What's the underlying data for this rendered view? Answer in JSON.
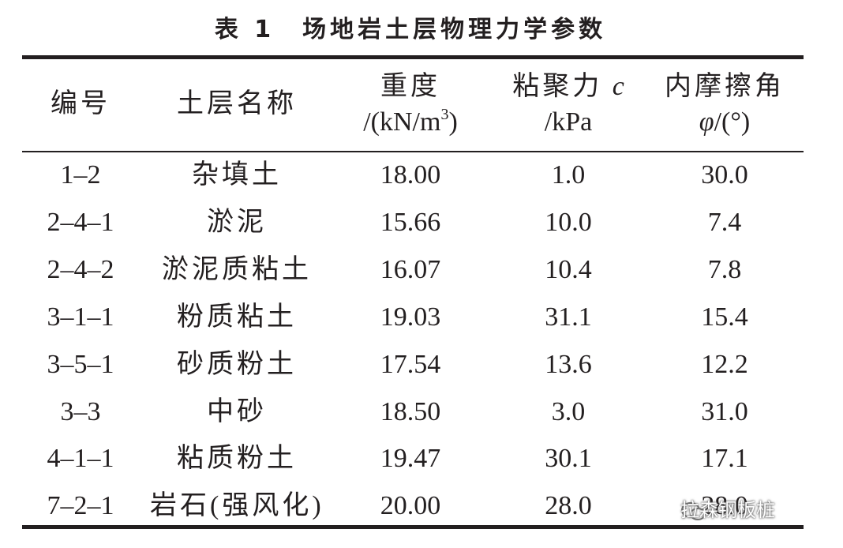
{
  "title": "表 1　场地岩土层物理力学参数",
  "table": {
    "header": {
      "id": "编号",
      "name": "土层名称",
      "weight": {
        "line1": "重度",
        "line2_pre": "/(kN/m",
        "line2_sup": "3",
        "line2_post": ")"
      },
      "cohesion": {
        "line1": "粘聚力 ",
        "line1_var": "c",
        "line2": "/kPa"
      },
      "friction": {
        "line1": "内摩擦角",
        "line2_var": "φ",
        "line2": "/(°)"
      }
    },
    "rows": [
      [
        "1–2",
        "杂填土",
        "18.00",
        "1.0",
        "30.0"
      ],
      [
        "2–4–1",
        "淤泥",
        "15.66",
        "10.0",
        "7.4"
      ],
      [
        "2–4–2",
        "淤泥质粘土",
        "16.07",
        "10.4",
        "7.8"
      ],
      [
        "3–1–1",
        "粉质粘土",
        "19.03",
        "31.1",
        "15.4"
      ],
      [
        "3–5–1",
        "砂质粉土",
        "17.54",
        "13.6",
        "12.2"
      ],
      [
        "3–3",
        "中砂",
        "18.50",
        "3.0",
        "31.0"
      ],
      [
        "4–1–1",
        "粘质粉土",
        "19.47",
        "30.1",
        "17.1"
      ],
      [
        "7–2–1",
        "岩石(强风化)",
        "20.00",
        "28.0",
        "28.0"
      ]
    ]
  },
  "watermark": "拉森钢板桩"
}
